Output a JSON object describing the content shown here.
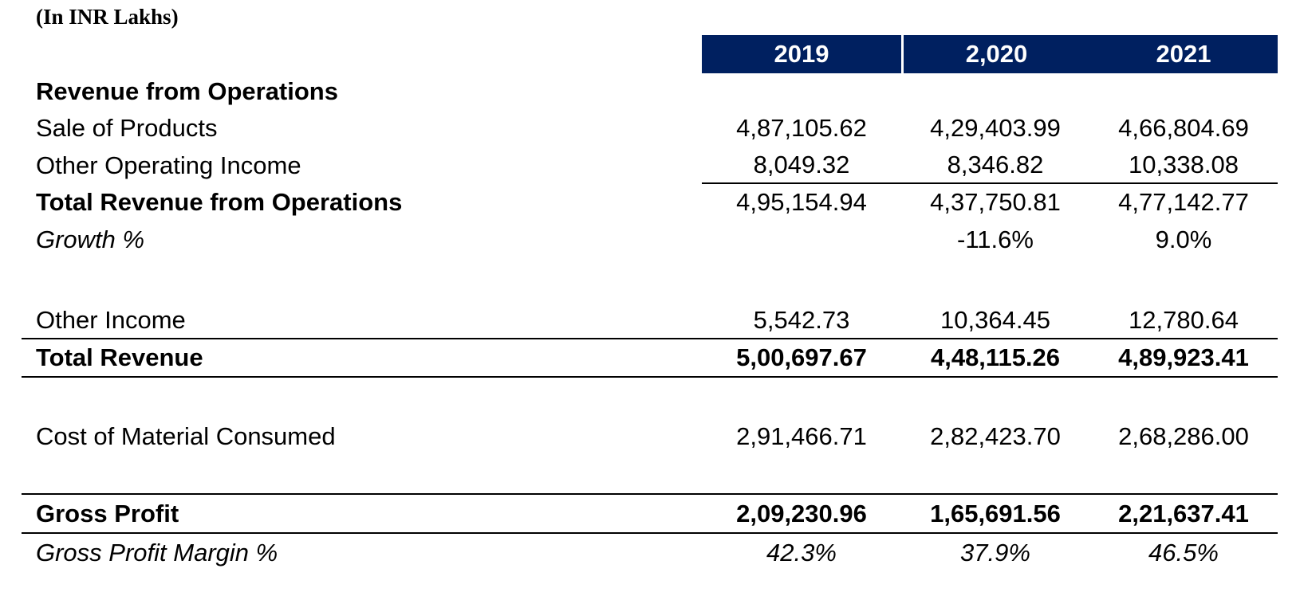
{
  "sheet": {
    "units_label": "(In INR Lakhs)",
    "colors": {
      "header_bg": "#002060",
      "header_text": "#ffffff",
      "rule": "#000000"
    },
    "columns": [
      "2019",
      "2,020",
      "2021"
    ],
    "rows": [
      {
        "label": "Revenue from Operations",
        "values": [
          "",
          "",
          ""
        ]
      },
      {
        "label": "Sale of Products",
        "values": [
          "4,87,105.62",
          "4,29,403.99",
          "4,66,804.69"
        ]
      },
      {
        "label": "Other Operating Income",
        "values": [
          "8,049.32",
          "8,346.82",
          "10,338.08"
        ]
      },
      {
        "label": "Total Revenue from Operations",
        "values": [
          "4,95,154.94",
          "4,37,750.81",
          "4,77,142.77"
        ]
      },
      {
        "label": "Growth %",
        "values": [
          "",
          "-11.6%",
          "9.0%"
        ]
      },
      {
        "label": "",
        "values": [
          "",
          "",
          ""
        ]
      },
      {
        "label": "Other Income",
        "values": [
          "5,542.73",
          "10,364.45",
          "12,780.64"
        ]
      },
      {
        "label": "Total Revenue",
        "values": [
          "5,00,697.67",
          "4,48,115.26",
          "4,89,923.41"
        ]
      },
      {
        "label": "",
        "values": [
          "",
          "",
          ""
        ]
      },
      {
        "label": "Cost of Material Consumed",
        "values": [
          "2,91,466.71",
          "2,82,423.70",
          "2,68,286.00"
        ]
      },
      {
        "label": "",
        "values": [
          "",
          "",
          ""
        ]
      },
      {
        "label": "Gross Profit",
        "values": [
          "2,09,230.96",
          "1,65,691.56",
          "2,21,637.41"
        ]
      },
      {
        "label": "Gross Profit Margin %",
        "values": [
          "42.3%",
          "37.9%",
          "46.5%"
        ]
      }
    ]
  }
}
